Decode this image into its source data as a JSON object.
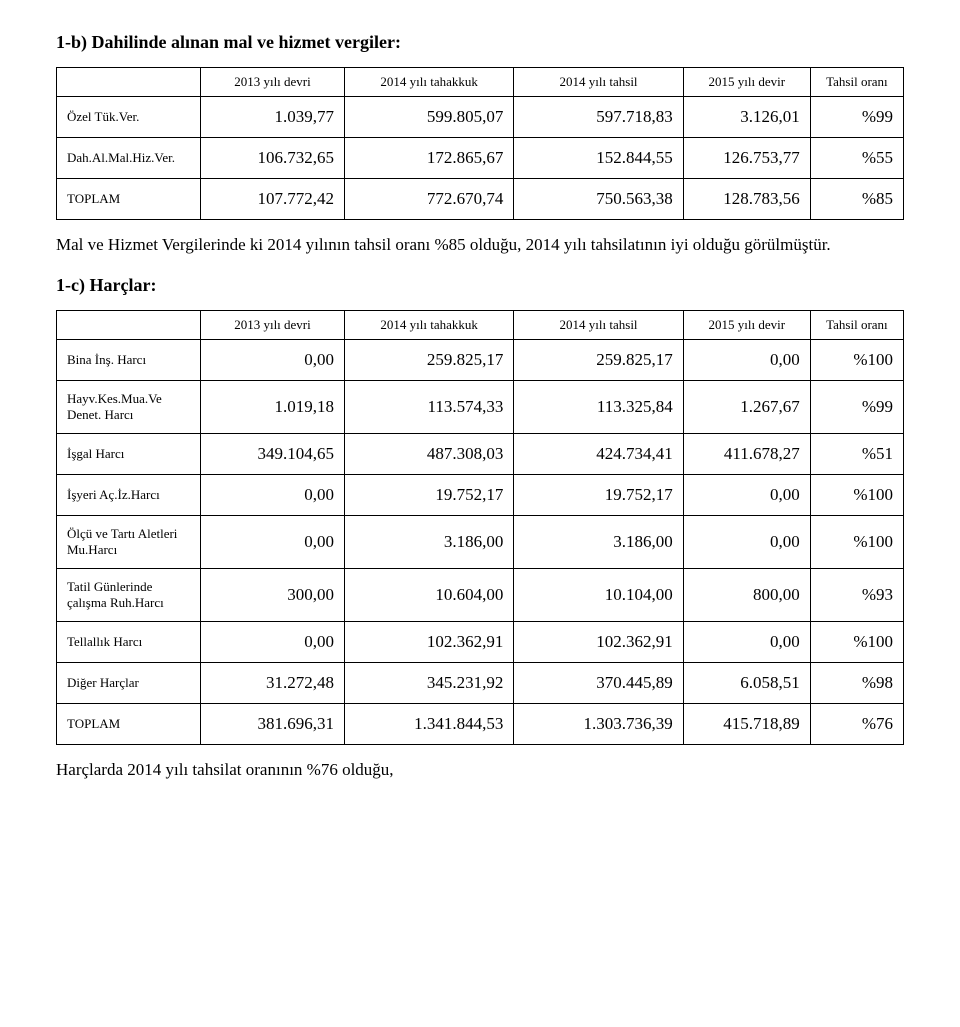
{
  "section1": {
    "heading": "1-b) Dahilinde alınan mal ve hizmet vergiler:",
    "columns": [
      "",
      "2013 yılı devri",
      "2014 yılı tahakkuk",
      "2014 yılı tahsil",
      "2015 yılı devir",
      "Tahsil oranı"
    ],
    "rows": [
      {
        "label": "Özel Tük.Ver.",
        "c1": "1.039,77",
        "c2": "599.805,07",
        "c3": "597.718,83",
        "c4": "3.126,01",
        "c5": "%99"
      },
      {
        "label": "Dah.Al.Mal.Hiz.Ver.",
        "c1": "106.732,65",
        "c2": "172.865,67",
        "c3": "152.844,55",
        "c4": "126.753,77",
        "c5": "%55"
      },
      {
        "label": "TOPLAM",
        "c1": "107.772,42",
        "c2": "772.670,74",
        "c3": "750.563,38",
        "c4": "128.783,56",
        "c5": "%85"
      }
    ],
    "note": "Mal ve Hizmet Vergilerinde ki 2014 yılının tahsil oranı %85 olduğu, 2014 yılı tahsilatının iyi olduğu görülmüştür."
  },
  "section2": {
    "heading": "1-c) Harçlar:",
    "columns": [
      "",
      "2013 yılı devri",
      "2014 yılı tahakkuk",
      "2014 yılı tahsil",
      "2015 yılı devir",
      "Tahsil oranı"
    ],
    "rows": [
      {
        "label": "Bina İnş. Harcı",
        "c1": "0,00",
        "c2": "259.825,17",
        "c3": "259.825,17",
        "c4": "0,00",
        "c5": "%100"
      },
      {
        "label": "Hayv.Kes.Mua.Ve Denet. Harcı",
        "c1": "1.019,18",
        "c2": "113.574,33",
        "c3": "113.325,84",
        "c4": "1.267,67",
        "c5": "%99"
      },
      {
        "label": "İşgal Harcı",
        "c1": "349.104,65",
        "c2": "487.308,03",
        "c3": "424.734,41",
        "c4": "411.678,27",
        "c5": "%51"
      },
      {
        "label": "İşyeri Aç.İz.Harcı",
        "c1": "0,00",
        "c2": "19.752,17",
        "c3": "19.752,17",
        "c4": "0,00",
        "c5": "%100"
      },
      {
        "label": "Ölçü ve Tartı Aletleri Mu.Harcı",
        "c1": "0,00",
        "c2": "3.186,00",
        "c3": "3.186,00",
        "c4": "0,00",
        "c5": "%100"
      },
      {
        "label": "Tatil Günlerinde çalışma Ruh.Harcı",
        "c1": "300,00",
        "c2": "10.604,00",
        "c3": "10.104,00",
        "c4": "800,00",
        "c5": "%93"
      },
      {
        "label": "Tellallık Harcı",
        "c1": "0,00",
        "c2": "102.362,91",
        "c3": "102.362,91",
        "c4": "0,00",
        "c5": "%100"
      },
      {
        "label": "Diğer Harçlar",
        "c1": "31.272,48",
        "c2": "345.231,92",
        "c3": "370.445,89",
        "c4": "6.058,51",
        "c5": "%98"
      },
      {
        "label": "TOPLAM",
        "c1": "381.696,31",
        "c2": "1.341.844,53",
        "c3": "1.303.736,39",
        "c4": "415.718,89",
        "c5": "%76"
      }
    ],
    "note": "Harçlarda 2014 yılı tahsilat oranının %76 olduğu,"
  },
  "style": {
    "font_family": "Times New Roman",
    "heading_fontsize_pt": 14,
    "heading_fontweight": "bold",
    "body_fontsize_pt": 13,
    "table_header_fontsize_pt": 10,
    "table_label_fontsize_pt": 10,
    "table_number_fontsize_pt": 13,
    "border_color": "#000000",
    "background_color": "#ffffff",
    "text_color": "#000000",
    "column_widths_pct": [
      17,
      17,
      20,
      20,
      15,
      11
    ],
    "number_align": "right",
    "label_align": "left",
    "header_align": "center"
  }
}
